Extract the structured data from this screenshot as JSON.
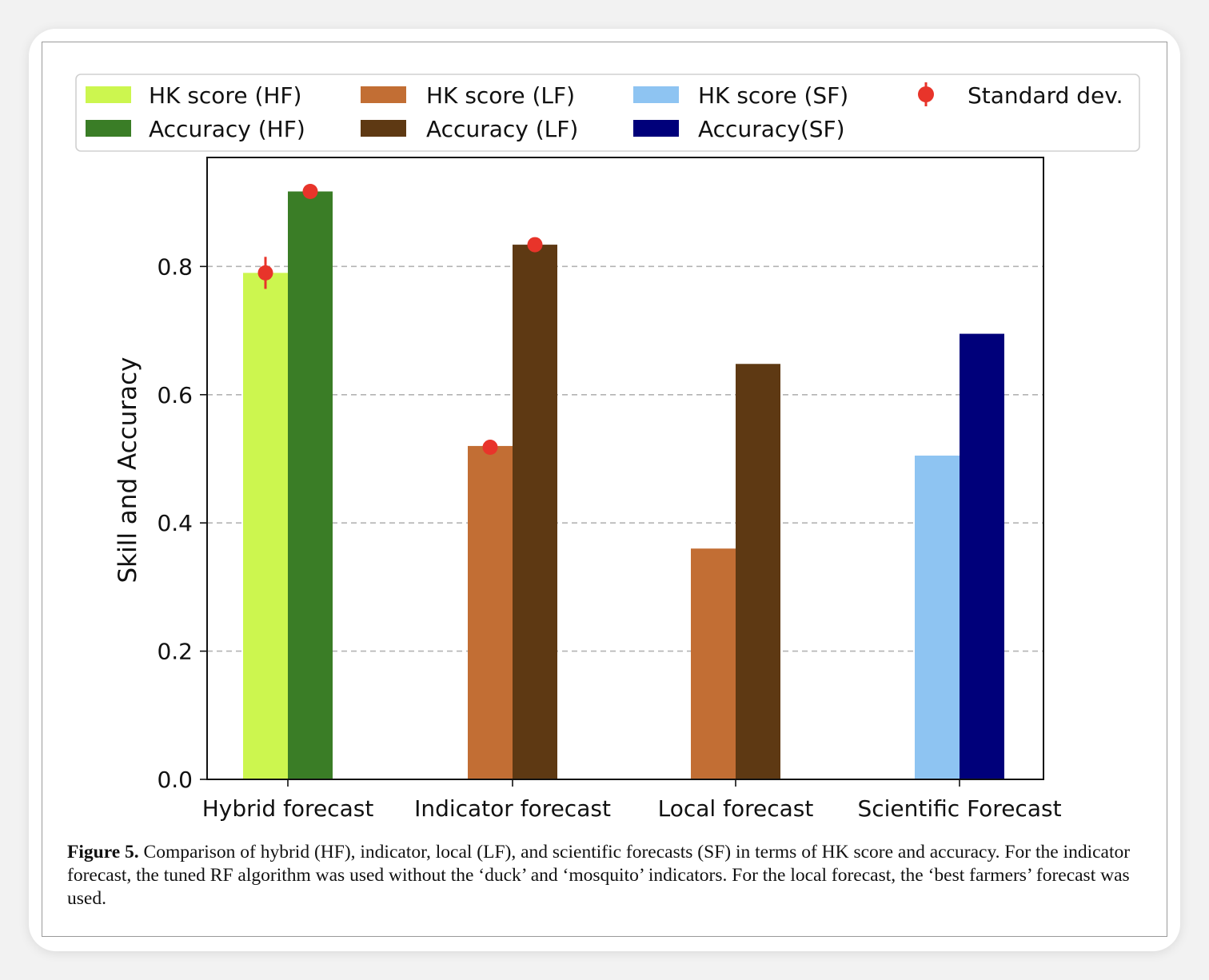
{
  "chart_data": {
    "type": "bar",
    "categories": [
      "Hybrid forecast",
      "Indicator forecast",
      "Local forecast",
      "Scientific Forecast"
    ],
    "ylabel": "Skill and Accuracy",
    "xlabel": "",
    "ylim": [
      0,
      0.97
    ],
    "yticks": [
      "0.0",
      "0.2",
      "0.4",
      "0.6",
      "0.8"
    ],
    "grid": "horizontal dashed",
    "legend_position": "above plot",
    "bars": [
      {
        "name": "HK score (HF)",
        "category": "Hybrid forecast",
        "slot": "left",
        "value": 0.79,
        "color": "#ccf64f"
      },
      {
        "name": "Accuracy (HF)",
        "category": "Hybrid forecast",
        "slot": "right",
        "value": 0.917,
        "color": "#3a7d26"
      },
      {
        "name": "HK score (LF)",
        "category": "Indicator forecast",
        "slot": "left",
        "value": 0.52,
        "color": "#c26e34"
      },
      {
        "name": "Accuracy (LF)",
        "category": "Indicator forecast",
        "slot": "right",
        "value": 0.834,
        "color": "#5e3913"
      },
      {
        "name": "HK score (LF)",
        "category": "Local forecast",
        "slot": "left",
        "value": 0.36,
        "color": "#c26e34"
      },
      {
        "name": "Accuracy (LF)",
        "category": "Local forecast",
        "slot": "right",
        "value": 0.648,
        "color": "#5e3913"
      },
      {
        "name": "HK score (SF)",
        "category": "Scientific Forecast",
        "slot": "left",
        "value": 0.505,
        "color": "#8ec4f2"
      },
      {
        "name": "Accuracy(SF)",
        "category": "Scientific Forecast",
        "slot": "right",
        "value": 0.695,
        "color": "#00007a"
      }
    ],
    "standard_dev": [
      {
        "category": "Hybrid forecast",
        "slot": "left",
        "value": 0.79,
        "err": 0.025
      },
      {
        "category": "Hybrid forecast",
        "slot": "right",
        "value": 0.917,
        "err": 0.006
      },
      {
        "category": "Indicator forecast",
        "slot": "left",
        "value": 0.518,
        "err": 0.006
      },
      {
        "category": "Indicator forecast",
        "slot": "right",
        "value": 0.834,
        "err": 0.006
      }
    ],
    "legend": [
      {
        "label": "HK score (HF)",
        "color": "#ccf64f",
        "kind": "patch"
      },
      {
        "label": "Accuracy (HF)",
        "color": "#3a7d26",
        "kind": "patch"
      },
      {
        "label": "HK score (LF)",
        "color": "#c26e34",
        "kind": "patch"
      },
      {
        "label": "Accuracy (LF)",
        "color": "#5e3913",
        "kind": "patch"
      },
      {
        "label": "HK score (SF)",
        "color": "#8ec4f2",
        "kind": "patch"
      },
      {
        "label": "Accuracy(SF)",
        "color": "#00007a",
        "kind": "patch"
      },
      {
        "label": "Standard dev.",
        "color": "#e8342a",
        "kind": "errorbar"
      }
    ]
  },
  "caption": {
    "label": "Figure 5.",
    "text": " Comparison of hybrid (HF), indicator, local (LF), and scientific forecasts (SF) in terms of HK score and accuracy. For the indicator forecast, the tuned RF algorithm was used without the ‘duck’ and ‘mosquito’ indicators. For the local forecast, the ‘best farmers’ forecast was used."
  }
}
